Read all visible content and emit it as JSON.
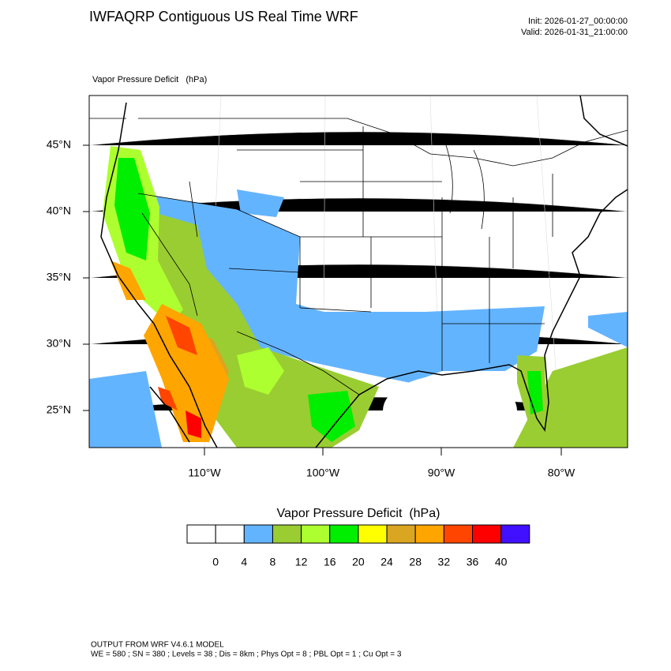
{
  "header": {
    "title": "IWFAQRP Contiguous US Real Time WRF",
    "init": "Init: 2026-01-27_00:00:00",
    "valid": "Valid: 2026-01-31_21:00:00",
    "subtitle": "Vapor Pressure Deficit   (hPa)"
  },
  "map": {
    "lat_labels": [
      "45°N",
      "40°N",
      "35°N",
      "30°N",
      "25°N"
    ],
    "lon_labels": [
      "110°W",
      "100°W",
      "90°W",
      "80°W"
    ]
  },
  "colorbar": {
    "title": "Vapor Pressure Deficit  (hPa)",
    "levels": [
      0,
      4,
      8,
      12,
      16,
      20,
      24,
      28,
      32,
      36,
      40
    ],
    "colors": [
      "#ffffff",
      "#ffffff",
      "#63b4ff",
      "#9acd32",
      "#adff2f",
      "#00ee00",
      "#ffff00",
      "#daa520",
      "#ffa500",
      "#ff4500",
      "#ff0000",
      "#4010ff"
    ]
  },
  "footer": {
    "line1": "OUTPUT FROM WRF V4.6.1 MODEL",
    "line2": "WE = 580 ; SN = 380 ; Levels = 38 ; Dis = 8km ; Phys Opt = 8 ; PBL Opt = 1 ; Cu Opt = 3"
  }
}
